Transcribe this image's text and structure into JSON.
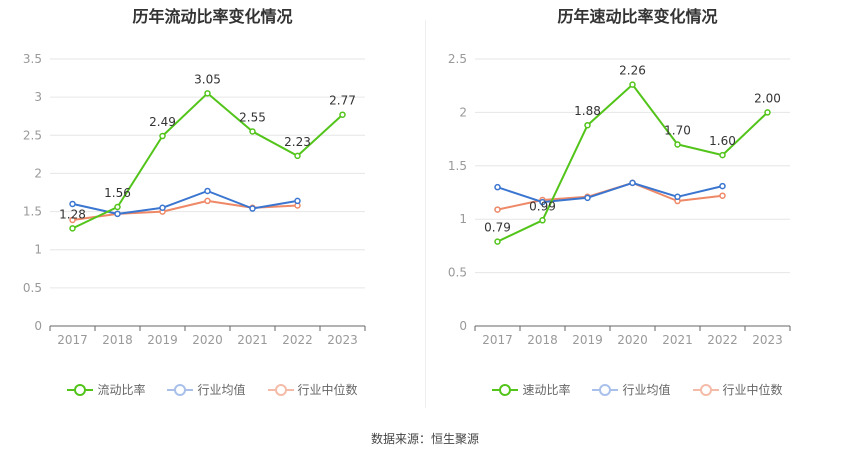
{
  "source_text": "数据来源：恒生聚源",
  "colors": {
    "main": "#52c41a",
    "avg": "#3a75d0",
    "median": "#ee8866",
    "grid": "#e6e6e6",
    "axis": "#999999",
    "label": "#333333"
  },
  "chart_data": [
    {
      "type": "line",
      "title": "历年流动比率变化情况",
      "x": [
        "2017",
        "2018",
        "2019",
        "2020",
        "2021",
        "2022",
        "2023"
      ],
      "ylim": [
        0,
        3.5
      ],
      "yticks": [
        "0",
        "0.5",
        "1",
        "1.5",
        "2",
        "2.5",
        "3",
        "3.5"
      ],
      "grid": true,
      "legend_position": "bottom",
      "series": [
        {
          "name": "流动比率",
          "key": "main",
          "values": [
            1.28,
            1.56,
            2.49,
            3.05,
            2.55,
            2.23,
            2.77
          ],
          "labels": [
            "1.28",
            "1.56",
            "2.49",
            "3.05",
            "2.55",
            "2.23",
            "2.77"
          ]
        },
        {
          "name": "行业均值",
          "key": "avg",
          "values": [
            1.6,
            1.47,
            1.55,
            1.77,
            1.54,
            1.64,
            null
          ]
        },
        {
          "name": "行业中位数",
          "key": "median",
          "values": [
            1.39,
            1.47,
            1.5,
            1.64,
            1.55,
            1.58,
            null
          ]
        }
      ]
    },
    {
      "type": "line",
      "title": "历年速动比率变化情况",
      "x": [
        "2017",
        "2018",
        "2019",
        "2020",
        "2021",
        "2022",
        "2023"
      ],
      "ylim": [
        0,
        2.5
      ],
      "yticks": [
        "0",
        "0.5",
        "1",
        "1.5",
        "2",
        "2.5"
      ],
      "grid": true,
      "legend_position": "bottom",
      "series": [
        {
          "name": "速动比率",
          "key": "main",
          "values": [
            0.79,
            0.99,
            1.88,
            2.26,
            1.7,
            1.6,
            2.0
          ],
          "labels": [
            "0.79",
            "0.99",
            "1.88",
            "2.26",
            "1.70",
            "1.60",
            "2.00"
          ]
        },
        {
          "name": "行业均值",
          "key": "avg",
          "values": [
            1.3,
            1.16,
            1.2,
            1.34,
            1.21,
            1.31,
            null
          ]
        },
        {
          "name": "行业中位数",
          "key": "median",
          "values": [
            1.09,
            1.18,
            1.21,
            1.34,
            1.17,
            1.22,
            null
          ]
        }
      ]
    }
  ]
}
